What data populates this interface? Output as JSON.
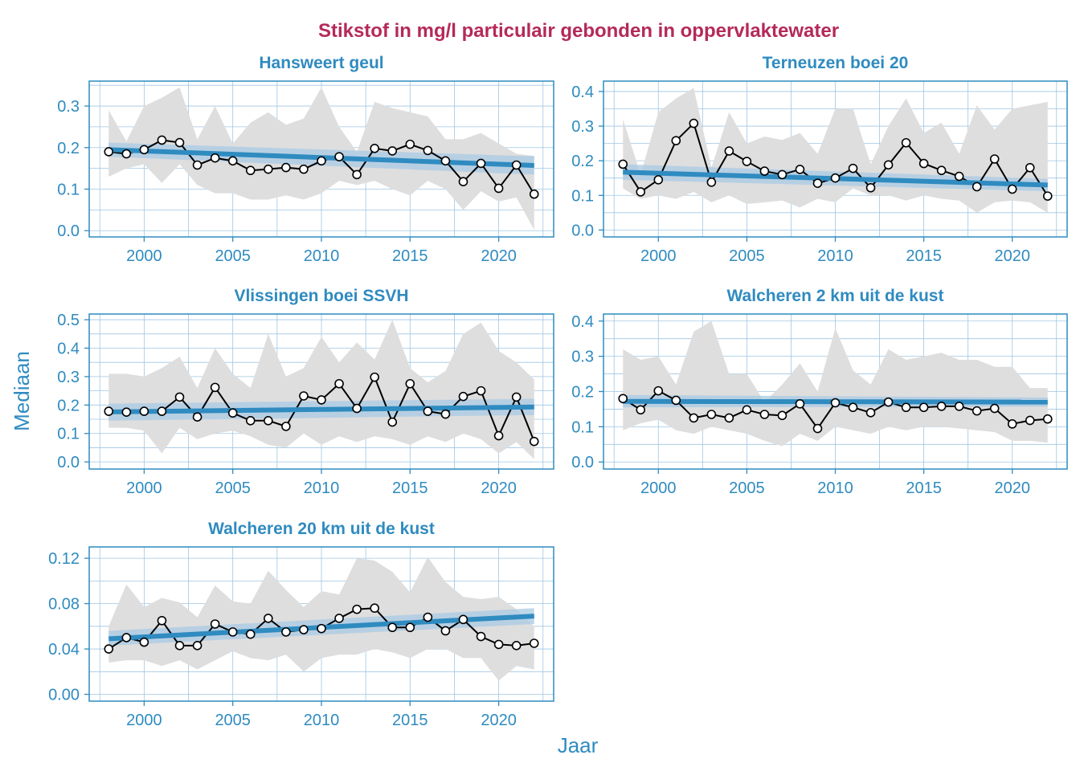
{
  "colors": {
    "title": "#b5295a",
    "axis": "#2f8bc0",
    "trend": "#2f8bc0",
    "trend_band": "#a9c9e4",
    "range_band": "#dedede",
    "grid": "#9fc6e3",
    "points_fill": "#ffffff",
    "points_stroke": "#000000"
  },
  "chart_data": {
    "type": "line",
    "title": "Stikstof in mg/l particulair gebonden in oppervlaktewater",
    "xlabel": "Jaar",
    "ylabel": "Mediaan",
    "grid": true,
    "legend": "none",
    "x": [
      1998,
      1999,
      2000,
      2001,
      2002,
      2003,
      2004,
      2005,
      2006,
      2007,
      2008,
      2009,
      2010,
      2011,
      2012,
      2013,
      2014,
      2015,
      2016,
      2017,
      2018,
      2019,
      2020,
      2021,
      2022
    ],
    "x_ticks": [
      2000,
      2005,
      2010,
      2015,
      2020
    ],
    "xlim": [
      1996.9,
      2023.1
    ],
    "panels": [
      {
        "title": "Hansweert geul",
        "ylim": [
          -0.015,
          0.36
        ],
        "y_ticks": [
          0.0,
          0.1,
          0.2,
          0.3
        ],
        "tick_labels": [
          "0.0",
          "0.1",
          "0.2",
          "0.3"
        ],
        "median": [
          0.19,
          0.185,
          0.195,
          0.218,
          0.212,
          0.158,
          0.175,
          0.168,
          0.145,
          0.148,
          0.152,
          0.148,
          0.168,
          0.178,
          0.135,
          0.198,
          0.192,
          0.208,
          0.193,
          0.168,
          0.118,
          0.162,
          0.102,
          0.158,
          0.088
        ],
        "band_low": [
          0.13,
          0.15,
          0.16,
          0.115,
          0.16,
          0.11,
          0.09,
          0.09,
          0.075,
          0.075,
          0.085,
          0.075,
          0.09,
          0.12,
          0.11,
          0.12,
          0.1,
          0.085,
          0.12,
          0.1,
          0.05,
          0.095,
          0.07,
          0.08,
          0.002
        ],
        "band_high": [
          0.29,
          0.215,
          0.3,
          0.32,
          0.345,
          0.22,
          0.3,
          0.21,
          0.26,
          0.285,
          0.255,
          0.27,
          0.345,
          0.25,
          0.19,
          0.31,
          0.295,
          0.285,
          0.275,
          0.22,
          0.22,
          0.235,
          0.21,
          0.185,
          0.18
        ],
        "trend": [
          0.195,
          0.157
        ],
        "trend_ci_low": [
          0.178,
          0.135
        ],
        "trend_ci_high": [
          0.212,
          0.179
        ]
      },
      {
        "title": "Terneuzen boei 20",
        "ylim": [
          -0.02,
          0.43
        ],
        "y_ticks": [
          0.0,
          0.1,
          0.2,
          0.3,
          0.4
        ],
        "tick_labels": [
          "0.0",
          "0.1",
          "0.2",
          "0.3",
          "0.4"
        ],
        "median": [
          0.19,
          0.11,
          0.145,
          0.258,
          0.308,
          0.138,
          0.228,
          0.198,
          0.17,
          0.16,
          0.175,
          0.135,
          0.15,
          0.178,
          0.122,
          0.188,
          0.252,
          0.192,
          0.172,
          0.155,
          0.125,
          0.205,
          0.118,
          0.18,
          0.098
        ],
        "band_low": [
          0.12,
          0.09,
          0.1,
          0.09,
          0.11,
          0.08,
          0.1,
          0.075,
          0.08,
          0.085,
          0.065,
          0.09,
          0.08,
          0.12,
          0.1,
          0.1,
          0.085,
          0.1,
          0.09,
          0.085,
          0.05,
          0.08,
          0.085,
          0.08,
          0.05
        ],
        "band_high": [
          0.32,
          0.16,
          0.34,
          0.38,
          0.41,
          0.18,
          0.34,
          0.25,
          0.27,
          0.26,
          0.28,
          0.22,
          0.35,
          0.35,
          0.19,
          0.3,
          0.38,
          0.28,
          0.31,
          0.22,
          0.36,
          0.29,
          0.35,
          0.36,
          0.37
        ],
        "trend": [
          0.167,
          0.13
        ],
        "trend_ci_low": [
          0.145,
          0.112
        ],
        "trend_ci_high": [
          0.19,
          0.148
        ]
      },
      {
        "title": "Vlissingen boei SSVH",
        "ylim": [
          -0.025,
          0.52
        ],
        "y_ticks": [
          0.0,
          0.1,
          0.2,
          0.3,
          0.4,
          0.5
        ],
        "tick_labels": [
          "0.0",
          "0.1",
          "0.2",
          "0.3",
          "0.4",
          "0.5"
        ],
        "median": [
          0.178,
          0.175,
          0.178,
          0.178,
          0.228,
          0.158,
          0.262,
          0.172,
          0.145,
          0.145,
          0.125,
          0.232,
          0.218,
          0.275,
          0.188,
          0.298,
          0.14,
          0.275,
          0.178,
          0.168,
          0.23,
          0.25,
          0.092,
          0.228,
          0.072
        ],
        "band_low": [
          0.12,
          0.12,
          0.11,
          0.03,
          0.12,
          0.08,
          0.1,
          0.11,
          0.09,
          0.06,
          0.05,
          0.1,
          0.06,
          0.09,
          0.07,
          0.09,
          0.08,
          0.06,
          0.09,
          0.07,
          0.1,
          0.08,
          0.03,
          0.07,
          0.01
        ],
        "band_high": [
          0.31,
          0.31,
          0.3,
          0.33,
          0.37,
          0.26,
          0.4,
          0.31,
          0.26,
          0.45,
          0.3,
          0.33,
          0.44,
          0.35,
          0.42,
          0.36,
          0.5,
          0.33,
          0.28,
          0.32,
          0.45,
          0.49,
          0.39,
          0.35,
          0.29
        ],
        "trend": [
          0.176,
          0.193
        ],
        "trend_ci_low": [
          0.145,
          0.165
        ],
        "trend_ci_high": [
          0.205,
          0.222
        ]
      },
      {
        "title": "Walcheren 2 km uit de kust",
        "ylim": [
          -0.02,
          0.42
        ],
        "y_ticks": [
          0.0,
          0.1,
          0.2,
          0.3,
          0.4
        ],
        "tick_labels": [
          "0.0",
          "0.1",
          "0.2",
          "0.3",
          "0.4"
        ],
        "median": [
          0.18,
          0.148,
          0.202,
          0.175,
          0.125,
          0.135,
          0.125,
          0.148,
          0.135,
          0.132,
          0.165,
          0.095,
          0.168,
          0.155,
          0.14,
          0.17,
          0.155,
          0.155,
          0.158,
          0.158,
          0.145,
          0.152,
          0.108,
          0.118,
          0.122
        ],
        "band_low": [
          0.09,
          0.11,
          0.12,
          0.09,
          0.08,
          0.1,
          0.09,
          0.08,
          0.06,
          0.045,
          0.08,
          0.06,
          0.1,
          0.09,
          0.08,
          0.1,
          0.09,
          0.1,
          0.1,
          0.095,
          0.09,
          0.085,
          0.06,
          0.06,
          0.055
        ],
        "band_high": [
          0.32,
          0.29,
          0.3,
          0.22,
          0.37,
          0.4,
          0.25,
          0.25,
          0.17,
          0.22,
          0.28,
          0.2,
          0.38,
          0.26,
          0.22,
          0.32,
          0.29,
          0.3,
          0.31,
          0.29,
          0.29,
          0.27,
          0.27,
          0.21,
          0.21
        ],
        "trend": [
          0.172,
          0.17
        ],
        "trend_ci_low": [
          0.155,
          0.157
        ],
        "trend_ci_high": [
          0.19,
          0.183
        ]
      },
      {
        "title": "Walcheren 20 km uit de kust",
        "ylim": [
          -0.006,
          0.13
        ],
        "y_ticks": [
          0.0,
          0.04,
          0.08,
          0.12
        ],
        "tick_labels": [
          "0.00",
          "0.04",
          "0.08",
          "0.12"
        ],
        "median": [
          0.04,
          0.05,
          0.046,
          0.065,
          0.043,
          0.043,
          0.062,
          0.055,
          0.053,
          0.067,
          0.055,
          0.057,
          0.058,
          0.067,
          0.075,
          0.076,
          0.059,
          0.059,
          0.068,
          0.056,
          0.066,
          0.051,
          0.044,
          0.043,
          0.045
        ],
        "band_low": [
          0.028,
          0.03,
          0.03,
          0.025,
          0.03,
          0.022,
          0.03,
          0.038,
          0.032,
          0.03,
          0.035,
          0.02,
          0.032,
          0.035,
          0.035,
          0.04,
          0.037,
          0.032,
          0.04,
          0.04,
          0.032,
          0.032,
          0.012,
          0.025,
          0.022
        ],
        "band_high": [
          0.06,
          0.097,
          0.077,
          0.085,
          0.081,
          0.068,
          0.096,
          0.082,
          0.08,
          0.109,
          0.092,
          0.077,
          0.091,
          0.088,
          0.12,
          0.118,
          0.108,
          0.09,
          0.121,
          0.099,
          0.086,
          0.084,
          0.086,
          0.075,
          0.06
        ],
        "trend": [
          0.049,
          0.069
        ],
        "trend_ci_low": [
          0.043,
          0.062
        ],
        "trend_ci_high": [
          0.056,
          0.076
        ]
      }
    ]
  }
}
